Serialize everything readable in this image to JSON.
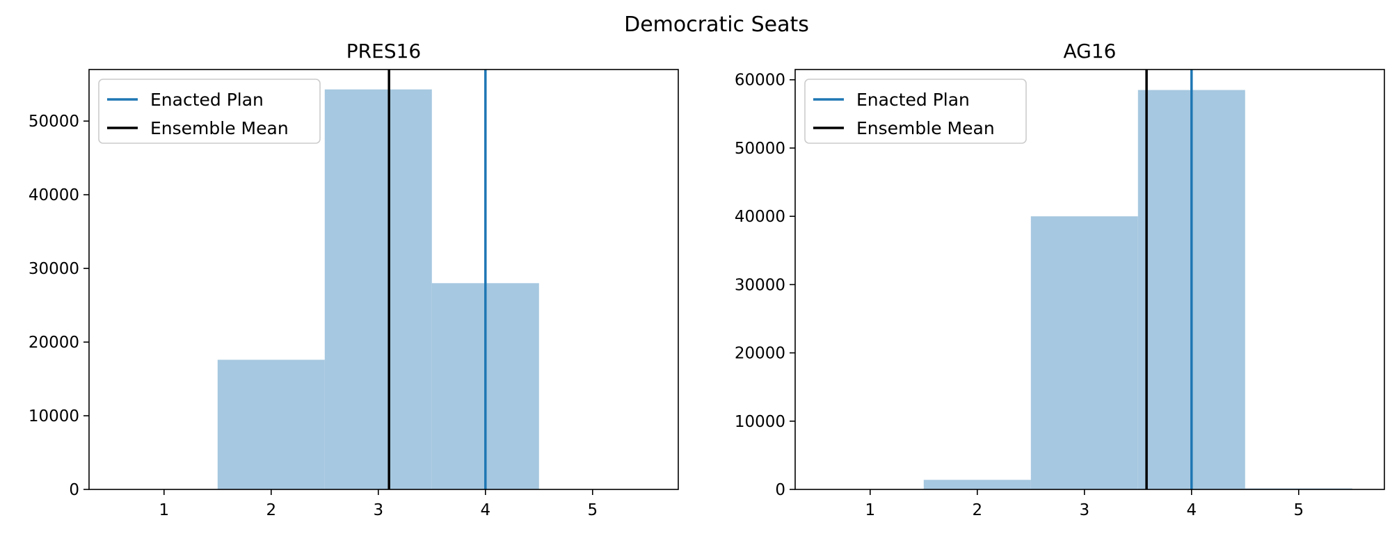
{
  "figure": {
    "title": "Democratic Seats"
  },
  "chart_data": [
    {
      "type": "bar",
      "title": "PRES16",
      "xlabel": "",
      "ylabel": "",
      "xlim": [
        0.3,
        5.8
      ],
      "ylim": [
        0,
        57000
      ],
      "xticks": [
        1,
        2,
        3,
        4,
        5
      ],
      "yticks": [
        0,
        10000,
        20000,
        30000,
        40000,
        50000
      ],
      "bins": [
        {
          "left": 0.5,
          "right": 1.5,
          "value": 0
        },
        {
          "left": 1.5,
          "right": 2.5,
          "value": 17600
        },
        {
          "left": 2.5,
          "right": 3.5,
          "value": 54300
        },
        {
          "left": 3.5,
          "right": 4.5,
          "value": 28000
        },
        {
          "left": 4.5,
          "right": 5.5,
          "value": 0
        }
      ],
      "bar_color": "#a6c8e0",
      "lines": [
        {
          "name": "Enacted Plan",
          "x": 4.0,
          "color": "#1f77b4"
        },
        {
          "name": "Ensemble Mean",
          "x": 3.1,
          "color": "#000000"
        }
      ],
      "legend": {
        "position": "top-left",
        "entries": [
          "Enacted Plan",
          "Ensemble Mean"
        ]
      },
      "grid": false
    },
    {
      "type": "bar",
      "title": "AG16",
      "xlabel": "",
      "ylabel": "",
      "xlim": [
        0.3,
        5.8
      ],
      "ylim": [
        0,
        61500
      ],
      "xticks": [
        1,
        2,
        3,
        4,
        5
      ],
      "yticks": [
        0,
        10000,
        20000,
        30000,
        40000,
        50000,
        60000
      ],
      "bins": [
        {
          "left": 0.5,
          "right": 1.5,
          "value": 0
        },
        {
          "left": 1.5,
          "right": 2.5,
          "value": 1400
        },
        {
          "left": 2.5,
          "right": 3.5,
          "value": 40000
        },
        {
          "left": 3.5,
          "right": 4.5,
          "value": 58500
        },
        {
          "left": 4.5,
          "right": 5.5,
          "value": 150
        }
      ],
      "bar_color": "#a6c8e0",
      "lines": [
        {
          "name": "Enacted Plan",
          "x": 4.0,
          "color": "#1f77b4"
        },
        {
          "name": "Ensemble Mean",
          "x": 3.58,
          "color": "#000000"
        }
      ],
      "legend": {
        "position": "top-left",
        "entries": [
          "Enacted Plan",
          "Ensemble Mean"
        ]
      },
      "grid": false
    }
  ]
}
